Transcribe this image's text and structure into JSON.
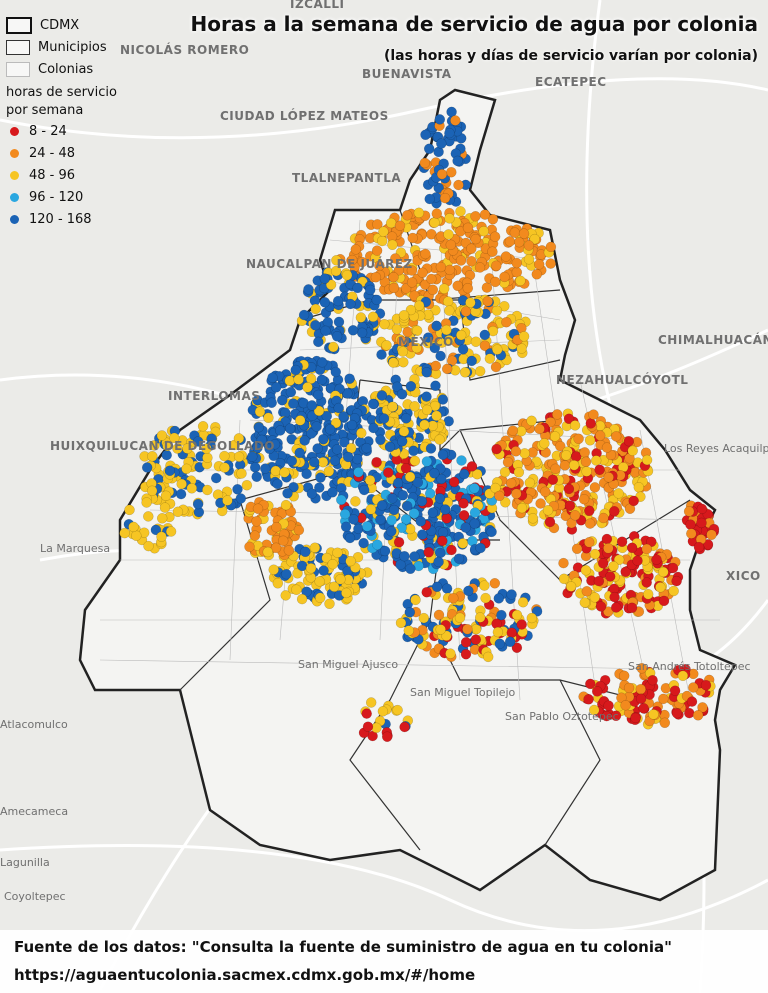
{
  "title": "Horas a la semana de servicio de agua por colonia",
  "subtitle": "(las horas y días de servicio varían por colonia)",
  "legend": {
    "boundaries": [
      "CDMX",
      "Municipios",
      "Colonias"
    ],
    "title": "horas de servicio por semana",
    "classes": [
      {
        "label": "8 - 24",
        "color": "#d7191c"
      },
      {
        "label": "24 - 48",
        "color": "#f28a1e"
      },
      {
        "label": "48 - 96",
        "color": "#f6c523"
      },
      {
        "label": "96 - 120",
        "color": "#2aa7e0"
      },
      {
        "label": "120 - 168",
        "color": "#1b63b5"
      }
    ]
  },
  "places": [
    "IZCALLI",
    "NICOLÁS ROMERO",
    "BUENAVISTA",
    "ECATEPEC",
    "CIUDAD LÓPEZ MATEOS",
    "TLALNEPANTLA",
    "NAUCALPAN DE JUÁREZ",
    "CHIMALHUACÁN",
    "MÉXICO",
    "NEZAHUALCÓYOTL",
    "INTERLOMAS",
    "HUIXQUILUCAN DE DEGOLLADO",
    "Los Reyes Acaquilpan",
    "La Marquesa",
    "XICO",
    "San Miguel Ajusco",
    "San Miguel Topilejo",
    "San Pablo Oztotepec",
    "San Andrés Totoltepec",
    "Atlacomulco",
    "Lagunilla",
    "Coyoltepec",
    "Amecameca"
  ],
  "source": {
    "text": "Fuente de los datos: \"Consulta la fuente de suministro de agua en tu colonia\"",
    "url": "https://aguaentucolonia.sacmex.cdmx.gob.mx/#/home"
  }
}
